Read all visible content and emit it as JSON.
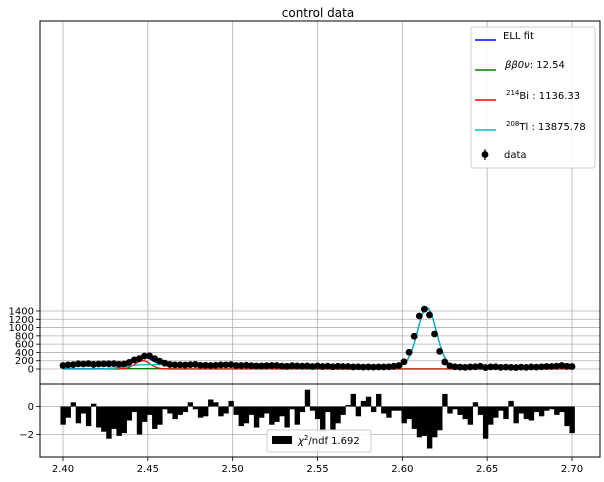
{
  "chart_data": [
    {
      "type": "scatter",
      "title": "control data",
      "xlabel": "",
      "ylabel": "",
      "xlim": [
        2.385,
        2.71
      ],
      "ylim": [
        -70,
        1560
      ],
      "x_ticks": [
        2.4,
        2.45,
        2.5,
        2.55,
        2.6,
        2.65,
        2.7
      ],
      "y_ticks": [
        0,
        200,
        400,
        600,
        800,
        1000,
        1200,
        1400
      ],
      "grid": true,
      "legend_position": "top-right",
      "legend": {
        "fit": {
          "label": "ELL fit",
          "color": "#0000ff"
        },
        "bb0v": {
          "prefix": "ββ0ν",
          "value": ":  12.54",
          "color": "#008000"
        },
        "bi": {
          "sup": "214",
          "element": "Bi",
          "value": " : 1136.33",
          "color": "#ff0000"
        },
        "tl": {
          "sup": "208",
          "element": "Tl",
          "value": " : 13875.78",
          "color": "#00bfbf"
        },
        "data": {
          "label": "data",
          "color": "#000000"
        }
      },
      "data_points": {
        "x": [
          2.4,
          2.403,
          2.406,
          2.409,
          2.412,
          2.415,
          2.418,
          2.421,
          2.424,
          2.427,
          2.43,
          2.433,
          2.436,
          2.439,
          2.442,
          2.445,
          2.448,
          2.451,
          2.454,
          2.457,
          2.46,
          2.463,
          2.466,
          2.469,
          2.472,
          2.475,
          2.478,
          2.481,
          2.484,
          2.487,
          2.49,
          2.493,
          2.496,
          2.499,
          2.502,
          2.505,
          2.508,
          2.511,
          2.514,
          2.517,
          2.52,
          2.523,
          2.526,
          2.529,
          2.532,
          2.535,
          2.538,
          2.541,
          2.544,
          2.547,
          2.55,
          2.553,
          2.556,
          2.559,
          2.562,
          2.565,
          2.568,
          2.571,
          2.574,
          2.577,
          2.58,
          2.583,
          2.586,
          2.589,
          2.592,
          2.595,
          2.598,
          2.601,
          2.604,
          2.607,
          2.61,
          2.613,
          2.616,
          2.619,
          2.622,
          2.625,
          2.628,
          2.631,
          2.634,
          2.637,
          2.64,
          2.643,
          2.646,
          2.649,
          2.652,
          2.655,
          2.658,
          2.661,
          2.664,
          2.667,
          2.67,
          2.673,
          2.676,
          2.679,
          2.682,
          2.685,
          2.688,
          2.691,
          2.694,
          2.697,
          2.7
        ],
        "y": [
          85,
          100,
          105,
          125,
          120,
          130,
          110,
          120,
          125,
          125,
          130,
          115,
          120,
          160,
          220,
          250,
          310,
          315,
          250,
          190,
          140,
          110,
          100,
          100,
          95,
          105,
          110,
          90,
          90,
          85,
          90,
          100,
          100,
          105,
          85,
          85,
          90,
          80,
          75,
          75,
          80,
          85,
          85,
          70,
          65,
          80,
          75,
          70,
          75,
          60,
          75,
          60,
          70,
          55,
          65,
          60,
          60,
          50,
          55,
          45,
          50,
          45,
          50,
          50,
          55,
          65,
          85,
          175,
          405,
          790,
          1280,
          1445,
          1305,
          845,
          425,
          170,
          75,
          55,
          45,
          40,
          50,
          55,
          65,
          35,
          50,
          55,
          40,
          45,
          40,
          35,
          45,
          40,
          50,
          45,
          55,
          60,
          60,
          70,
          85,
          65,
          60
        ],
        "yerr": [
          9,
          10,
          10,
          11,
          11,
          11,
          10,
          11,
          11,
          11,
          11,
          11,
          11,
          13,
          15,
          16,
          18,
          18,
          16,
          14,
          12,
          10,
          10,
          10,
          10,
          10,
          10,
          9,
          9,
          9,
          9,
          10,
          10,
          10,
          9,
          9,
          9,
          9,
          9,
          9,
          9,
          9,
          9,
          8,
          8,
          9,
          9,
          8,
          9,
          8,
          9,
          8,
          8,
          7,
          8,
          8,
          8,
          7,
          7,
          7,
          7,
          7,
          7,
          7,
          7,
          8,
          9,
          13,
          20,
          28,
          36,
          38,
          36,
          29,
          21,
          13,
          9,
          7,
          7,
          6,
          7,
          7,
          8,
          6,
          7,
          7,
          6,
          7,
          6,
          6,
          7,
          6,
          7,
          7,
          7,
          8,
          8,
          8,
          9,
          8,
          8
        ]
      },
      "components": {
        "bi_peak": {
          "center": 2.447,
          "sigma": 0.0045,
          "amplitude": 200
        },
        "tl_peak": {
          "center": 2.6145,
          "sigma": 0.0055,
          "amplitude": 1425
        },
        "tl_continuum": {
          "left_shoulder_x": 2.437,
          "left_shoulder_y": 112,
          "drop_center": 2.6145,
          "low_end_y": 45
        },
        "bb0v": {
          "level": 3,
          "bump_center": 2.447,
          "bump_amplitude": 6
        }
      }
    },
    {
      "type": "bar",
      "title": "",
      "xlabel": "",
      "ylabel": "",
      "ylim": [
        -3.6,
        1.5
      ],
      "y_ticks": [
        0,
        -2
      ],
      "grid": true,
      "legend_position": "lower-center",
      "legend": {
        "label_prefix": "χ",
        "label_sup": "2",
        "label_suffix": "/ndf  1.692"
      },
      "x": [
        2.4,
        2.403,
        2.406,
        2.409,
        2.412,
        2.415,
        2.418,
        2.421,
        2.424,
        2.427,
        2.43,
        2.433,
        2.436,
        2.439,
        2.442,
        2.445,
        2.448,
        2.451,
        2.454,
        2.457,
        2.46,
        2.463,
        2.466,
        2.469,
        2.472,
        2.475,
        2.478,
        2.481,
        2.484,
        2.487,
        2.49,
        2.493,
        2.496,
        2.499,
        2.502,
        2.505,
        2.508,
        2.511,
        2.514,
        2.517,
        2.52,
        2.523,
        2.526,
        2.529,
        2.532,
        2.535,
        2.538,
        2.541,
        2.544,
        2.547,
        2.55,
        2.553,
        2.556,
        2.559,
        2.562,
        2.565,
        2.568,
        2.571,
        2.574,
        2.577,
        2.58,
        2.583,
        2.586,
        2.589,
        2.592,
        2.595,
        2.598,
        2.601,
        2.604,
        2.607,
        2.61,
        2.613,
        2.616,
        2.619,
        2.622,
        2.625,
        2.628,
        2.631,
        2.634,
        2.637,
        2.64,
        2.643,
        2.646,
        2.649,
        2.652,
        2.655,
        2.658,
        2.661,
        2.664,
        2.667,
        2.67,
        2.673,
        2.676,
        2.679,
        2.682,
        2.685,
        2.688,
        2.691,
        2.694,
        2.697,
        2.7
      ],
      "values": [
        -1.3,
        -0.8,
        0.3,
        -1.2,
        -0.5,
        -1.4,
        0.2,
        -1.5,
        -1.8,
        -2.3,
        -1.6,
        -2.1,
        -1.9,
        -1.0,
        -0.4,
        -2.0,
        -1.1,
        -0.6,
        -1.6,
        -1.3,
        -0.2,
        -0.5,
        -0.9,
        -0.6,
        -0.4,
        0.3,
        -0.2,
        -0.8,
        -0.7,
        0.5,
        0.3,
        -0.7,
        -0.5,
        0.4,
        -0.6,
        -1.4,
        -1.2,
        -0.6,
        -1.5,
        -0.8,
        -0.5,
        -1.3,
        -1.1,
        -0.7,
        -1.5,
        -0.2,
        -1.3,
        -0.4,
        1.2,
        -0.3,
        -0.9,
        -1.8,
        -0.4,
        -1.7,
        -1.2,
        -0.6,
        0.1,
        0.9,
        -0.7,
        0.4,
        0.7,
        -0.4,
        0.9,
        -0.5,
        -0.8,
        -0.3,
        -0.3,
        -1.2,
        -0.9,
        -1.6,
        -2.2,
        -2.1,
        -3.0,
        -2.2,
        -1.7,
        0.9,
        -0.5,
        -0.2,
        -0.6,
        -0.9,
        -1.3,
        0.3,
        -0.6,
        -2.3,
        -1.3,
        -0.8,
        -0.3,
        -0.9,
        0.4,
        -1.2,
        -0.5,
        -0.9,
        -1.0,
        -0.4,
        -0.7,
        -0.3,
        -0.2,
        -0.6,
        -0.4,
        -1.4,
        -1.9
      ]
    }
  ]
}
